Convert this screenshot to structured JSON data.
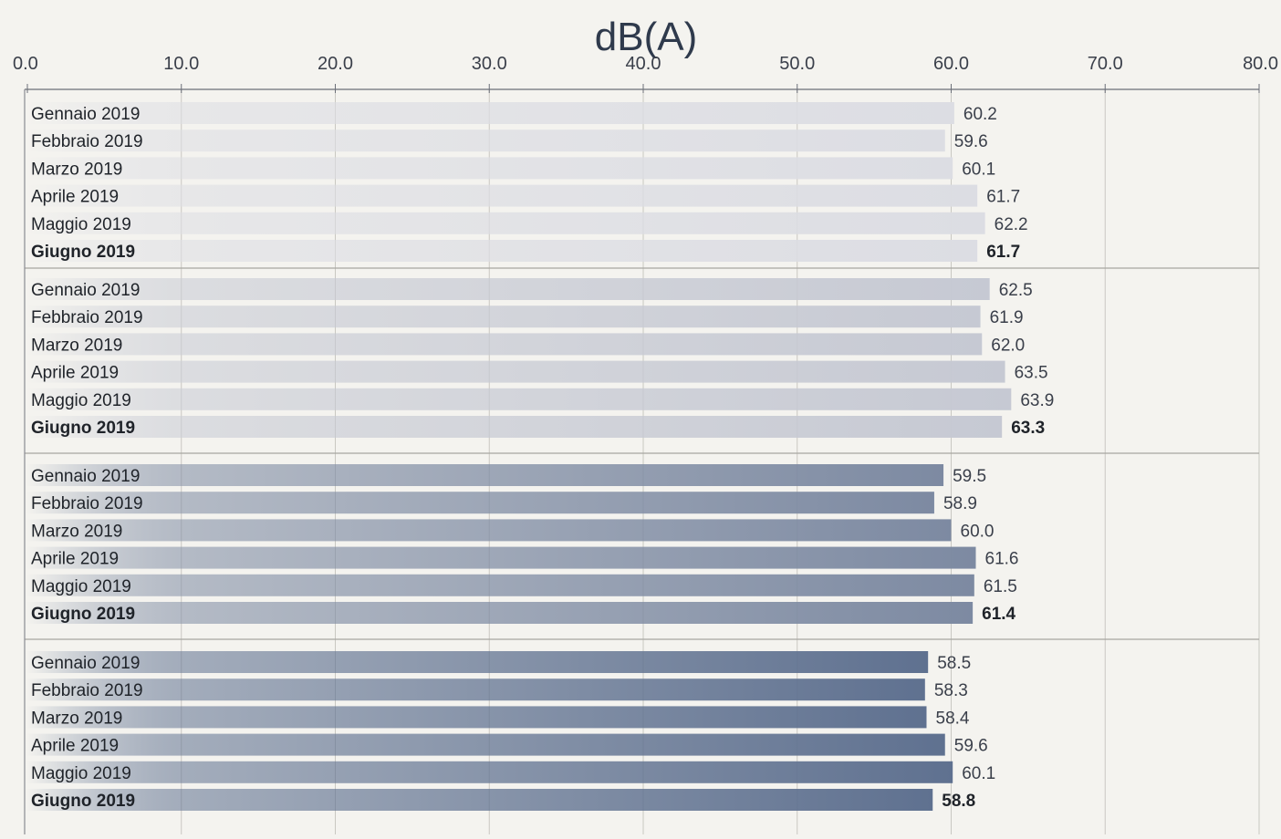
{
  "chart_data": {
    "type": "bar",
    "orientation": "horizontal",
    "unit_label": "dB(A)",
    "xlim": [
      0,
      80
    ],
    "x_ticks": [
      "0.0",
      "10.0",
      "20.0",
      "30.0",
      "40.0",
      "50.0",
      "60.0",
      "70.0",
      "80.0"
    ],
    "grid": true,
    "groups": [
      {
        "color": "#dcdde3",
        "bars": [
          {
            "label": "Gennaio 2019",
            "value": 60.2,
            "value_text": "60.2",
            "bold": false
          },
          {
            "label": "Febbraio 2019",
            "value": 59.6,
            "value_text": "59.6",
            "bold": false
          },
          {
            "label": "Marzo 2019",
            "value": 60.1,
            "value_text": "60.1",
            "bold": false
          },
          {
            "label": "Aprile 2019",
            "value": 61.7,
            "value_text": "61.7",
            "bold": false
          },
          {
            "label": "Maggio 2019",
            "value": 62.2,
            "value_text": "62.2",
            "bold": false
          },
          {
            "label": "Giugno 2019",
            "value": 61.7,
            "value_text": "61.7",
            "bold": true
          }
        ]
      },
      {
        "color": "#c6c9d3",
        "bars": [
          {
            "label": "Gennaio 2019",
            "value": 62.5,
            "value_text": "62.5",
            "bold": false
          },
          {
            "label": "Febbraio 2019",
            "value": 61.9,
            "value_text": "61.9",
            "bold": false
          },
          {
            "label": "Marzo 2019",
            "value": 62.0,
            "value_text": "62.0",
            "bold": false
          },
          {
            "label": "Aprile 2019",
            "value": 63.5,
            "value_text": "63.5",
            "bold": false
          },
          {
            "label": "Maggio 2019",
            "value": 63.9,
            "value_text": "63.9",
            "bold": false
          },
          {
            "label": "Giugno 2019",
            "value": 63.3,
            "value_text": "63.3",
            "bold": true
          }
        ]
      },
      {
        "color": "#7d8aa2",
        "bars": [
          {
            "label": "Gennaio 2019",
            "value": 59.5,
            "value_text": "59.5",
            "bold": false
          },
          {
            "label": "Febbraio 2019",
            "value": 58.9,
            "value_text": "58.9",
            "bold": false
          },
          {
            "label": "Marzo 2019",
            "value": 60.0,
            "value_text": "60.0",
            "bold": false
          },
          {
            "label": "Aprile 2019",
            "value": 61.6,
            "value_text": "61.6",
            "bold": false
          },
          {
            "label": "Maggio 2019",
            "value": 61.5,
            "value_text": "61.5",
            "bold": false
          },
          {
            "label": "Giugno 2019",
            "value": 61.4,
            "value_text": "61.4",
            "bold": true
          }
        ]
      },
      {
        "color": "#5f7190",
        "bars": [
          {
            "label": "Gennaio 2019",
            "value": 58.5,
            "value_text": "58.5",
            "bold": false
          },
          {
            "label": "Febbraio 2019",
            "value": 58.3,
            "value_text": "58.3",
            "bold": false
          },
          {
            "label": "Marzo 2019",
            "value": 58.4,
            "value_text": "58.4",
            "bold": false
          },
          {
            "label": "Aprile 2019",
            "value": 59.6,
            "value_text": "59.6",
            "bold": false
          },
          {
            "label": "Maggio 2019",
            "value": 60.1,
            "value_text": "60.1",
            "bold": false
          },
          {
            "label": "Giugno 2019",
            "value": 58.8,
            "value_text": "58.8",
            "bold": true
          }
        ]
      }
    ]
  }
}
